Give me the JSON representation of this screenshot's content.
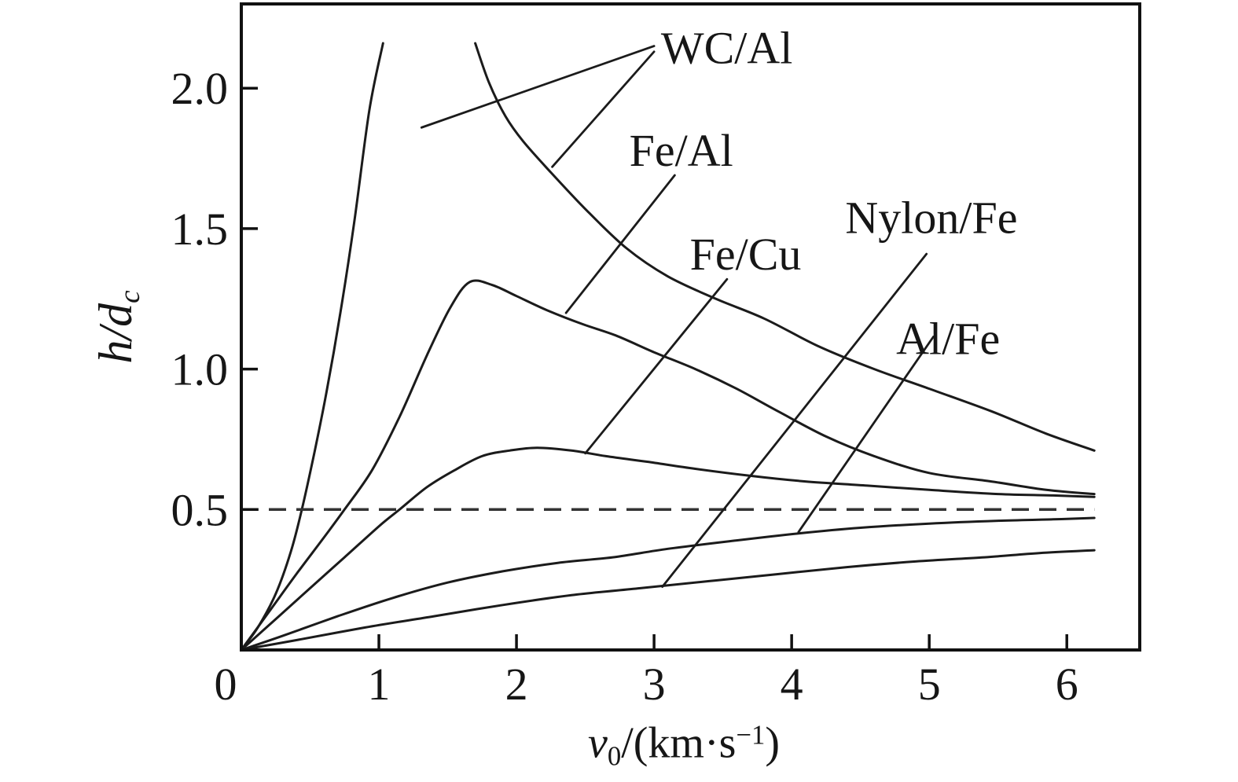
{
  "figure": {
    "background": "#ffffff",
    "ink_color": "#1b1b1b"
  },
  "axes": {
    "x_title": {
      "variable": "v",
      "subscript": "0",
      "mid": "/(km·s",
      "superscript": "−1",
      "end": ")"
    },
    "y_title": {
      "main": "h/d",
      "subscript": "c"
    }
  },
  "chart_data": {
    "type": "line",
    "title": "",
    "xlabel": "v0/(km·s−1)",
    "ylabel": "h/dc",
    "xlim": [
      0,
      6.53
    ],
    "ylim": [
      0,
      2.3
    ],
    "grid": false,
    "legend_position": "none",
    "x_ticks": [
      0,
      1,
      2,
      3,
      4,
      5,
      6
    ],
    "x_tick_labels": [
      "0",
      "1",
      "2",
      "3",
      "4",
      "5",
      "6"
    ],
    "y_ticks": [
      0.5,
      1.0,
      1.5,
      2.0
    ],
    "y_tick_labels": [
      "0.5",
      "1.0",
      "1.5",
      "2.0"
    ],
    "reference_line": {
      "y": 0.5,
      "style": "dashed",
      "x_start": 0,
      "x_end": 6.2
    },
    "line_color": "#1b1b1b",
    "series": [
      {
        "name": "WC/Al rising branch",
        "points": [
          [
            0,
            0
          ],
          [
            0.12,
            0.08
          ],
          [
            0.25,
            0.2
          ],
          [
            0.36,
            0.35
          ],
          [
            0.44,
            0.5
          ],
          [
            0.53,
            0.7
          ],
          [
            0.62,
            0.92
          ],
          [
            0.72,
            1.2
          ],
          [
            0.82,
            1.52
          ],
          [
            0.93,
            1.92
          ],
          [
            1.03,
            2.16
          ]
        ]
      },
      {
        "name": "WC/Al falling branch",
        "points": [
          [
            1.7,
            2.16
          ],
          [
            1.8,
            2.02
          ],
          [
            1.92,
            1.9
          ],
          [
            2.05,
            1.81
          ],
          [
            2.25,
            1.7
          ],
          [
            2.5,
            1.57
          ],
          [
            2.8,
            1.43
          ],
          [
            3.1,
            1.33
          ],
          [
            3.45,
            1.25
          ],
          [
            3.8,
            1.18
          ],
          [
            4.2,
            1.08
          ],
          [
            4.6,
            1.0
          ],
          [
            5.0,
            0.93
          ],
          [
            5.45,
            0.85
          ],
          [
            5.85,
            0.77
          ],
          [
            6.2,
            0.71
          ]
        ]
      },
      {
        "name": "Fe/Al",
        "points": [
          [
            0,
            0
          ],
          [
            0.2,
            0.135
          ],
          [
            0.4,
            0.27
          ],
          [
            0.6,
            0.4
          ],
          [
            0.75,
            0.5
          ],
          [
            0.95,
            0.64
          ],
          [
            1.15,
            0.83
          ],
          [
            1.35,
            1.05
          ],
          [
            1.52,
            1.22
          ],
          [
            1.66,
            1.31
          ],
          [
            1.82,
            1.3
          ],
          [
            2.0,
            1.26
          ],
          [
            2.22,
            1.21
          ],
          [
            2.48,
            1.16
          ],
          [
            2.72,
            1.12
          ],
          [
            3.0,
            1.06
          ],
          [
            3.3,
            1.0
          ],
          [
            3.6,
            0.93
          ],
          [
            3.9,
            0.85
          ],
          [
            4.25,
            0.76
          ],
          [
            4.6,
            0.69
          ],
          [
            5.0,
            0.63
          ],
          [
            5.45,
            0.6
          ],
          [
            5.85,
            0.57
          ],
          [
            6.2,
            0.555
          ]
        ]
      },
      {
        "name": "Fe/Cu",
        "points": [
          [
            0,
            0
          ],
          [
            0.25,
            0.11
          ],
          [
            0.5,
            0.22
          ],
          [
            0.75,
            0.33
          ],
          [
            1.0,
            0.44
          ],
          [
            1.15,
            0.5
          ],
          [
            1.35,
            0.58
          ],
          [
            1.55,
            0.64
          ],
          [
            1.75,
            0.69
          ],
          [
            1.95,
            0.71
          ],
          [
            2.15,
            0.72
          ],
          [
            2.4,
            0.71
          ],
          [
            2.65,
            0.69
          ],
          [
            2.95,
            0.67
          ],
          [
            3.3,
            0.645
          ],
          [
            3.7,
            0.62
          ],
          [
            4.1,
            0.6
          ],
          [
            4.55,
            0.585
          ],
          [
            5.0,
            0.57
          ],
          [
            5.5,
            0.555
          ],
          [
            5.9,
            0.55
          ],
          [
            6.2,
            0.545
          ]
        ]
      },
      {
        "name": "Al/Fe",
        "points": [
          [
            0,
            0
          ],
          [
            0.3,
            0.05
          ],
          [
            0.7,
            0.12
          ],
          [
            1.1,
            0.185
          ],
          [
            1.5,
            0.24
          ],
          [
            1.9,
            0.28
          ],
          [
            2.3,
            0.31
          ],
          [
            2.7,
            0.33
          ],
          [
            3.1,
            0.36
          ],
          [
            3.6,
            0.39
          ],
          [
            4.05,
            0.415
          ],
          [
            4.5,
            0.435
          ],
          [
            5.0,
            0.45
          ],
          [
            5.5,
            0.46
          ],
          [
            5.9,
            0.465
          ],
          [
            6.2,
            0.47
          ]
        ]
      },
      {
        "name": "Nylon/Fe",
        "points": [
          [
            0,
            0
          ],
          [
            0.4,
            0.035
          ],
          [
            0.9,
            0.08
          ],
          [
            1.4,
            0.12
          ],
          [
            1.9,
            0.16
          ],
          [
            2.4,
            0.195
          ],
          [
            2.9,
            0.22
          ],
          [
            3.4,
            0.245
          ],
          [
            3.9,
            0.27
          ],
          [
            4.4,
            0.295
          ],
          [
            4.9,
            0.315
          ],
          [
            5.4,
            0.33
          ],
          [
            5.8,
            0.345
          ],
          [
            6.2,
            0.355
          ]
        ]
      }
    ],
    "annotations": [
      {
        "label": "WC/Al",
        "label_xy": [
          3.05,
          2.145
        ],
        "leaders": [
          [
            [
              3.0,
              2.15
            ],
            [
              1.31,
              1.86
            ]
          ],
          [
            [
              3.0,
              2.13
            ],
            [
              2.26,
              1.72
            ]
          ]
        ]
      },
      {
        "label": "Fe/Al",
        "label_xy": [
          2.82,
          1.78
        ],
        "leaders": [
          [
            [
              3.15,
              1.69
            ],
            [
              2.36,
              1.2
            ]
          ]
        ]
      },
      {
        "label": "Fe/Cu",
        "label_xy": [
          3.26,
          1.41
        ],
        "leaders": [
          [
            [
              3.53,
              1.32
            ],
            [
              2.5,
              0.7
            ]
          ]
        ]
      },
      {
        "label": "Nylon/Fe",
        "label_xy": [
          4.39,
          1.54
        ],
        "leaders": [
          [
            [
              4.98,
              1.41
            ],
            [
              3.06,
              0.225
            ]
          ]
        ]
      },
      {
        "label": "Al/Fe",
        "label_xy": [
          4.76,
          1.11
        ],
        "leaders": [
          [
            [
              5.03,
              1.115
            ],
            [
              4.05,
              0.42
            ]
          ]
        ]
      }
    ]
  }
}
